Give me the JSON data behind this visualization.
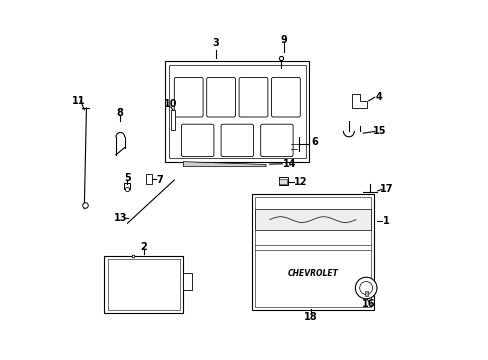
{
  "bg_color": "#ffffff",
  "line_color": "#000000",
  "default_lw": 0.8
}
